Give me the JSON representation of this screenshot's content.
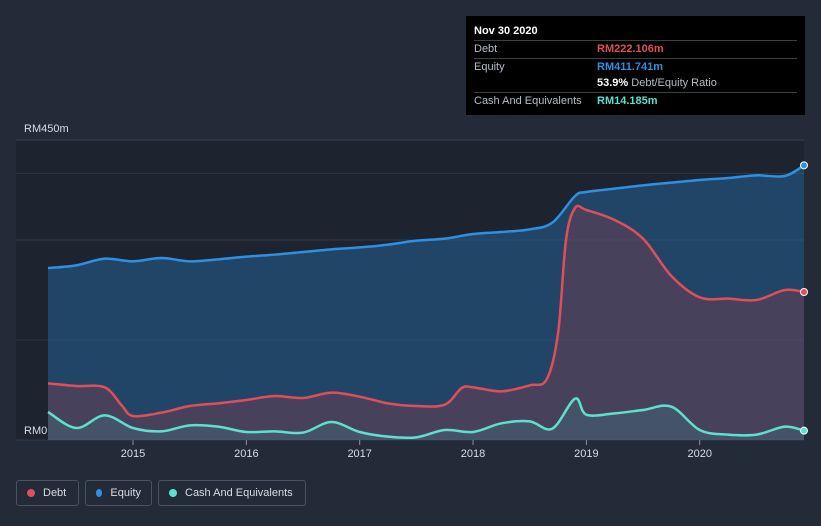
{
  "tooltip": {
    "date": "Nov 30 2020",
    "debt_label": "Debt",
    "debt_value": "RM222.106m",
    "equity_label": "Equity",
    "equity_value": "RM411.741m",
    "ratio_value": "53.9%",
    "ratio_label": "Debt/Equity Ratio",
    "cash_label": "Cash And Equivalents",
    "cash_value": "RM14.185m"
  },
  "legend": {
    "debt": "Debt",
    "equity": "Equity",
    "cash": "Cash And Equivalents"
  },
  "colors": {
    "debt": "#e04e5a",
    "equity": "#2f8fe0",
    "cash": "#5ee0cf",
    "background": "#232b38"
  },
  "chart_data": {
    "type": "area",
    "title": "",
    "xlabel": "",
    "ylabel": "",
    "ylim": [
      0,
      450
    ],
    "y_tick_labels": [
      "RM0",
      "RM450m"
    ],
    "x_tick_labels": [
      "2015",
      "2016",
      "2017",
      "2018",
      "2019",
      "2020"
    ],
    "x_tick_values": [
      2015,
      2016,
      2017,
      2018,
      2019,
      2020
    ],
    "xlim": [
      2014.25,
      2020.92
    ],
    "series": [
      {
        "name": "Equity",
        "color": "#2f8fe0",
        "x": [
          2014.25,
          2014.5,
          2014.75,
          2015.0,
          2015.25,
          2015.5,
          2015.75,
          2016.0,
          2016.25,
          2016.5,
          2016.75,
          2017.0,
          2017.25,
          2017.5,
          2017.75,
          2018.0,
          2018.25,
          2018.5,
          2018.7,
          2018.9,
          2019.0,
          2019.25,
          2019.5,
          2019.75,
          2020.0,
          2020.25,
          2020.5,
          2020.75,
          2020.92
        ],
        "values": [
          258,
          262,
          272,
          268,
          273,
          268,
          271,
          275,
          278,
          282,
          286,
          289,
          293,
          299,
          302,
          309,
          312,
          316,
          326,
          366,
          372,
          377,
          382,
          386,
          390,
          393,
          397,
          396,
          412
        ]
      },
      {
        "name": "Debt",
        "color": "#e04e5a",
        "x": [
          2014.25,
          2014.5,
          2014.75,
          2014.9,
          2015.0,
          2015.25,
          2015.5,
          2015.75,
          2016.0,
          2016.25,
          2016.5,
          2016.75,
          2017.0,
          2017.25,
          2017.5,
          2017.75,
          2017.9,
          2018.0,
          2018.25,
          2018.5,
          2018.65,
          2018.75,
          2018.82,
          2018.9,
          2019.0,
          2019.25,
          2019.5,
          2019.75,
          2020.0,
          2020.25,
          2020.5,
          2020.75,
          2020.92
        ],
        "values": [
          85,
          81,
          79,
          52,
          36,
          41,
          51,
          55,
          60,
          66,
          63,
          71,
          65,
          55,
          51,
          53,
          78,
          79,
          73,
          82,
          91,
          160,
          300,
          348,
          345,
          330,
          302,
          246,
          214,
          212,
          210,
          225,
          222
        ]
      },
      {
        "name": "Cash And Equivalents",
        "color": "#5ee0cf",
        "x": [
          2014.25,
          2014.5,
          2014.75,
          2015.0,
          2015.25,
          2015.5,
          2015.75,
          2016.0,
          2016.25,
          2016.5,
          2016.75,
          2017.0,
          2017.25,
          2017.5,
          2017.75,
          2018.0,
          2018.25,
          2018.5,
          2018.7,
          2018.9,
          2019.0,
          2019.25,
          2019.5,
          2019.75,
          2020.0,
          2020.25,
          2020.5,
          2020.75,
          2020.92
        ],
        "values": [
          42,
          18,
          37,
          18,
          13,
          22,
          20,
          12,
          13,
          11,
          27,
          12,
          5,
          4,
          15,
          12,
          25,
          28,
          17,
          62,
          38,
          40,
          45,
          50,
          15,
          8,
          8,
          20,
          14
        ]
      }
    ]
  }
}
